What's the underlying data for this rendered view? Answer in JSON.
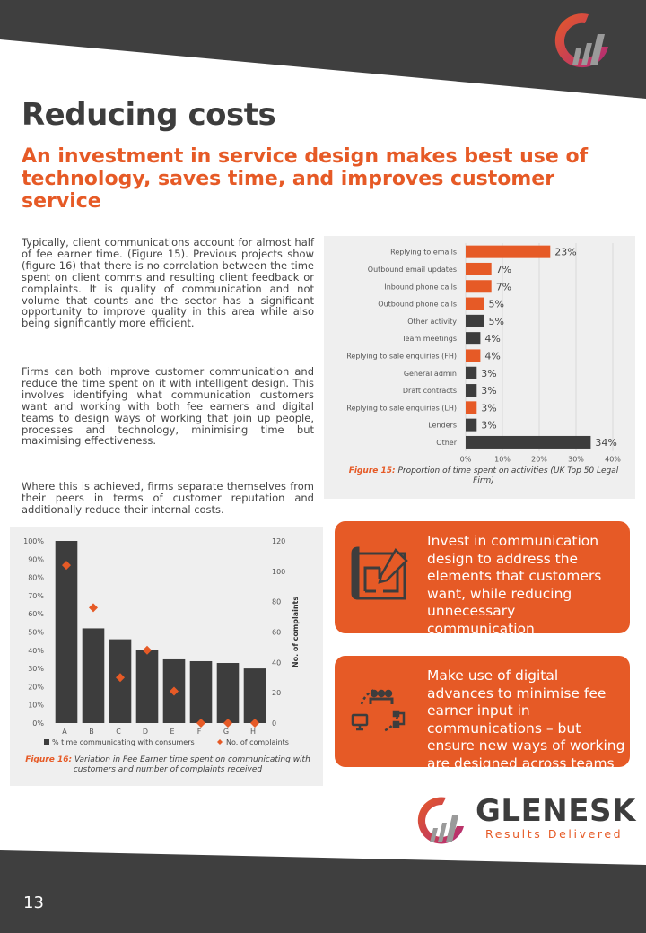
{
  "page": {
    "title": "Reducing costs",
    "subtitle": "An investment in service design makes best use of technology, saves time, and improves customer service",
    "page_number": "13"
  },
  "body": {
    "paragraphs": [
      "Typically, client communications account for almost half of fee earner time. (Figure 15). Previous projects show (figure 16) that there is no correlation between the time spent on client comms and resulting client feedback or complaints. It is quality of communication and not volume that counts and the sector has a significant opportunity to improve quality in this area while also being significantly more efficient.",
      "Firms can both improve customer communication and reduce the time spent on it with intelligent design. This involves identifying what communication customers want and working with both fee earners and digital teams to design ways of working that join up people, processes and technology, minimising time but maximising effectiveness.",
      "Where this is achieved, firms separate themselves from their peers in terms of customer reputation and additionally reduce their internal costs."
    ]
  },
  "figure15": {
    "caption_label": "Figure 15:",
    "caption_text": " Proportion of time spent on activities (UK Top 50 Legal Firm)"
  },
  "figure16": {
    "caption_label": "Figure 16:",
    "caption_text": " Variation in Fee Earner time spent on communicating with customers and number of complaints received"
  },
  "callouts": [
    {
      "text": "Invest in communication design to address the elements that customers want, while reducing unnecessary communication",
      "icon": "blueprint-icon"
    },
    {
      "text": "Make use of digital advances to minimise fee earner input in communications – but ensure new ways of working are designed across teams",
      "icon": "team-network-icon"
    }
  ],
  "brand": {
    "name": "GLENESK",
    "tagline": "Results Delivered"
  },
  "colors": {
    "orange": "#e65a26",
    "dark": "#3d3d3d",
    "panel": "#efefef"
  },
  "chart_data": [
    {
      "type": "bar",
      "orientation": "horizontal",
      "categories": [
        "Replying to emails",
        "Outbound email updates",
        "Inbound phone calls",
        "Outbound phone calls",
        "Other activity",
        "Team meetings",
        "Replying to sale enquiries (FH)",
        "General admin",
        "Draft contracts",
        "Replying to sale enquiries (LH)",
        "Lenders",
        "Other"
      ],
      "values": [
        23,
        7,
        7,
        5,
        5,
        4,
        4,
        3,
        3,
        3,
        3,
        34
      ],
      "value_labels": [
        "23%",
        "7%",
        "7%",
        "5%",
        "5%",
        "4%",
        "4%",
        "3%",
        "3%",
        "3%",
        "3%",
        "34%"
      ],
      "bar_colors": [
        "#e65a26",
        "#e65a26",
        "#e65a26",
        "#e65a26",
        "#3d3d3d",
        "#3d3d3d",
        "#e65a26",
        "#3d3d3d",
        "#3d3d3d",
        "#e65a26",
        "#3d3d3d",
        "#3d3d3d"
      ],
      "xlim": [
        0,
        40
      ],
      "xticks": [
        "0%",
        "10%",
        "20%",
        "30%",
        "40%"
      ],
      "grid": true
    },
    {
      "type": "bar",
      "categories": [
        "A",
        "B",
        "C",
        "D",
        "E",
        "F",
        "G",
        "H"
      ],
      "series": [
        {
          "name": "% time communicating with consumers",
          "type": "bar",
          "axis": "left",
          "values": [
            100,
            52,
            46,
            40,
            35,
            34,
            33,
            30
          ],
          "color": "#3d3d3d"
        },
        {
          "name": "No. of complaints",
          "type": "scatter",
          "axis": "right",
          "values": [
            104,
            76,
            30,
            48,
            21,
            0,
            0,
            0
          ],
          "color": "#e65a26"
        }
      ],
      "ylim": [
        0,
        100
      ],
      "yticks": [
        "0%",
        "10%",
        "20%",
        "30%",
        "40%",
        "50%",
        "60%",
        "70%",
        "80%",
        "90%",
        "100%"
      ],
      "y2lim": [
        0,
        120
      ],
      "y2ticks": [
        "0",
        "20",
        "40",
        "60",
        "80",
        "100",
        "120"
      ],
      "y2label": "No. of complaints",
      "legend": "bottom"
    }
  ]
}
